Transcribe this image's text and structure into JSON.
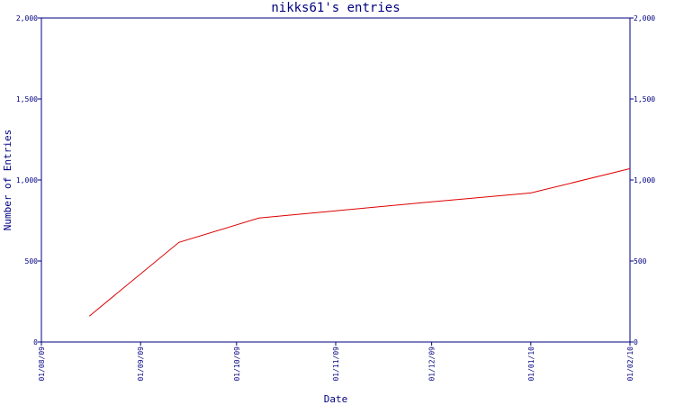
{
  "colors": {
    "axis": "#000080",
    "series": "#dd0000",
    "background": "#ffffff"
  },
  "chart_data": {
    "type": "line",
    "title": "nikks61's entries",
    "xlabel": "Date",
    "ylabel": "Number of Entries",
    "x_ticks": [
      "01/08/09",
      "01/09/09",
      "01/10/09",
      "01/11/09",
      "01/12/09",
      "01/01/10",
      "01/02/10"
    ],
    "y_ticks": [
      "0",
      "500",
      "1,000",
      "1,500",
      "2,000"
    ],
    "ylim": [
      0,
      2000
    ],
    "xlim": [
      "2009-08-01",
      "2010-02-01"
    ],
    "grid": false,
    "series": [
      {
        "points": [
          {
            "x": "2009-08-16",
            "y": 160
          },
          {
            "x": "2009-09-13",
            "y": 615
          },
          {
            "x": "2009-10-08",
            "y": 765
          },
          {
            "x": "2009-11-01",
            "y": 810
          },
          {
            "x": "2009-12-01",
            "y": 865
          },
          {
            "x": "2010-01-01",
            "y": 920
          },
          {
            "x": "2010-02-01",
            "y": 1070
          }
        ]
      }
    ]
  }
}
